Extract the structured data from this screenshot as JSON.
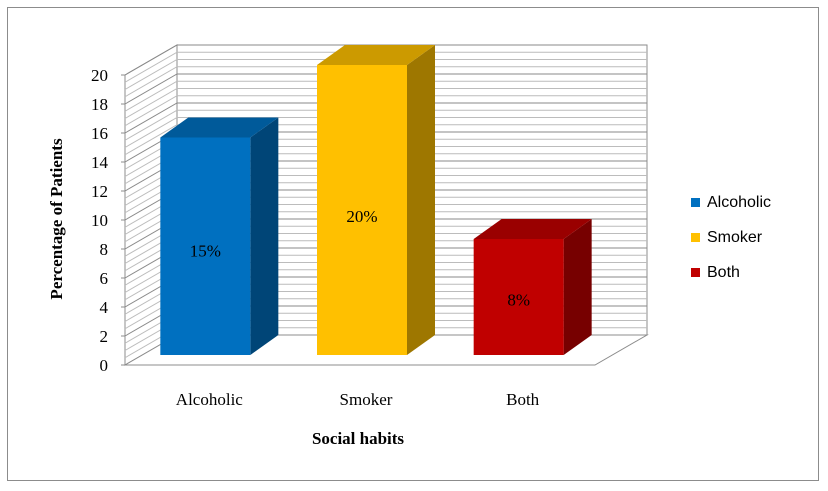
{
  "chart_data": {
    "type": "bar",
    "title": "",
    "xlabel": "Social habits",
    "ylabel": "Percentage of Patients",
    "categories": [
      "Alcoholic",
      "Smoker",
      "Both"
    ],
    "values": [
      15,
      20,
      8
    ],
    "data_labels": [
      "15%",
      "20%",
      "8%"
    ],
    "colors": [
      "#0070C0",
      "#FFC000",
      "#C00000"
    ],
    "ylim": [
      0,
      20
    ],
    "yticks": [
      0,
      2,
      4,
      6,
      8,
      10,
      12,
      14,
      16,
      18,
      20
    ],
    "grid": true,
    "legend_position": "right",
    "legend": [
      {
        "label": "Alcoholic",
        "color": "#0070C0"
      },
      {
        "label": "Smoker",
        "color": "#FFC000"
      },
      {
        "label": "Both",
        "color": "#C00000"
      }
    ]
  }
}
